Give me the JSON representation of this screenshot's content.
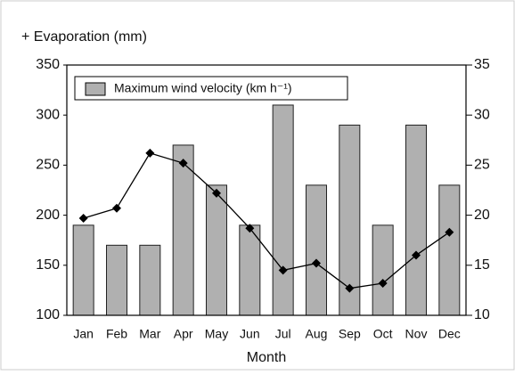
{
  "chart_data": {
    "type": "bar",
    "x_label": "Month",
    "categories": [
      "Jan",
      "Feb",
      "Mar",
      "Apr",
      "May",
      "Jun",
      "Jul",
      "Aug",
      "Sep",
      "Oct",
      "Nov",
      "Dec"
    ],
    "series": [
      {
        "name": "Maximum wind velocity (km h⁻¹)",
        "type": "bar",
        "axis": "y2",
        "color": "#b0b0b0",
        "values": [
          19,
          17,
          17,
          27,
          23,
          19,
          31,
          23,
          29,
          19,
          29,
          23
        ]
      },
      {
        "name": "+ Evaporation (mm)",
        "type": "line",
        "color": "#000000",
        "values": [
          197,
          207,
          262,
          252,
          222,
          187,
          145,
          152,
          127,
          132,
          160,
          183
        ]
      }
    ],
    "ylim": [
      100,
      350
    ],
    "yticks": [
      100,
      150,
      200,
      250,
      300,
      350
    ],
    "y2lim": [
      10,
      35
    ],
    "y2ticks": [
      10,
      15,
      20,
      25,
      30,
      35
    ],
    "grid": false
  }
}
